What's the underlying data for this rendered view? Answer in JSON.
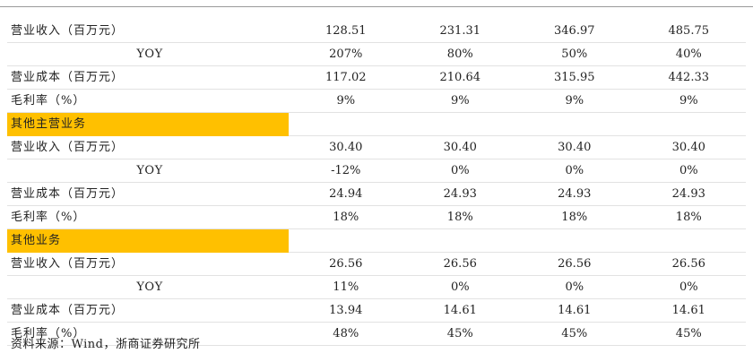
{
  "rows": [
    {
      "type": "data",
      "label": "营业收入（百万元）",
      "values": [
        "128.51",
        "231.31",
        "346.97",
        "485.75"
      ]
    },
    {
      "type": "yoy",
      "label": "YOY",
      "values": [
        "207%",
        "80%",
        "50%",
        "40%"
      ]
    },
    {
      "type": "data",
      "label": "营业成本（百万元）",
      "values": [
        "117.02",
        "210.64",
        "315.95",
        "442.33"
      ]
    },
    {
      "type": "data",
      "label": "毛利率（%）",
      "values": [
        "9%",
        "9%",
        "9%",
        "9%"
      ]
    },
    {
      "type": "section",
      "label": "其他主营业务"
    },
    {
      "type": "data",
      "label": "营业收入（百万元）",
      "values": [
        "30.40",
        "30.40",
        "30.40",
        "30.40"
      ]
    },
    {
      "type": "yoy",
      "label": "YOY",
      "values": [
        "-12%",
        "0%",
        "0%",
        "0%"
      ]
    },
    {
      "type": "data",
      "label": "营业成本（百万元）",
      "values": [
        "24.94",
        "24.93",
        "24.93",
        "24.93"
      ]
    },
    {
      "type": "data",
      "label": "毛利率（%）",
      "values": [
        "18%",
        "18%",
        "18%",
        "18%"
      ]
    },
    {
      "type": "section",
      "label": "其他业务"
    },
    {
      "type": "data",
      "label": "营业收入（百万元）",
      "values": [
        "26.56",
        "26.56",
        "26.56",
        "26.56"
      ]
    },
    {
      "type": "yoy",
      "label": "YOY",
      "values": [
        "11%",
        "0%",
        "0%",
        "0%"
      ]
    },
    {
      "type": "data",
      "label": "营业成本（百万元）",
      "values": [
        "13.94",
        "14.61",
        "14.61",
        "14.61"
      ]
    },
    {
      "type": "data",
      "label": "毛利率（%）",
      "values": [
        "48%",
        "45%",
        "45%",
        "45%"
      ]
    }
  ],
  "source": "资料来源：Wind，浙商证券研究所",
  "colors": {
    "section_highlight": "#ffc000",
    "row_border": "#e2e2e2",
    "text": "#222222"
  }
}
